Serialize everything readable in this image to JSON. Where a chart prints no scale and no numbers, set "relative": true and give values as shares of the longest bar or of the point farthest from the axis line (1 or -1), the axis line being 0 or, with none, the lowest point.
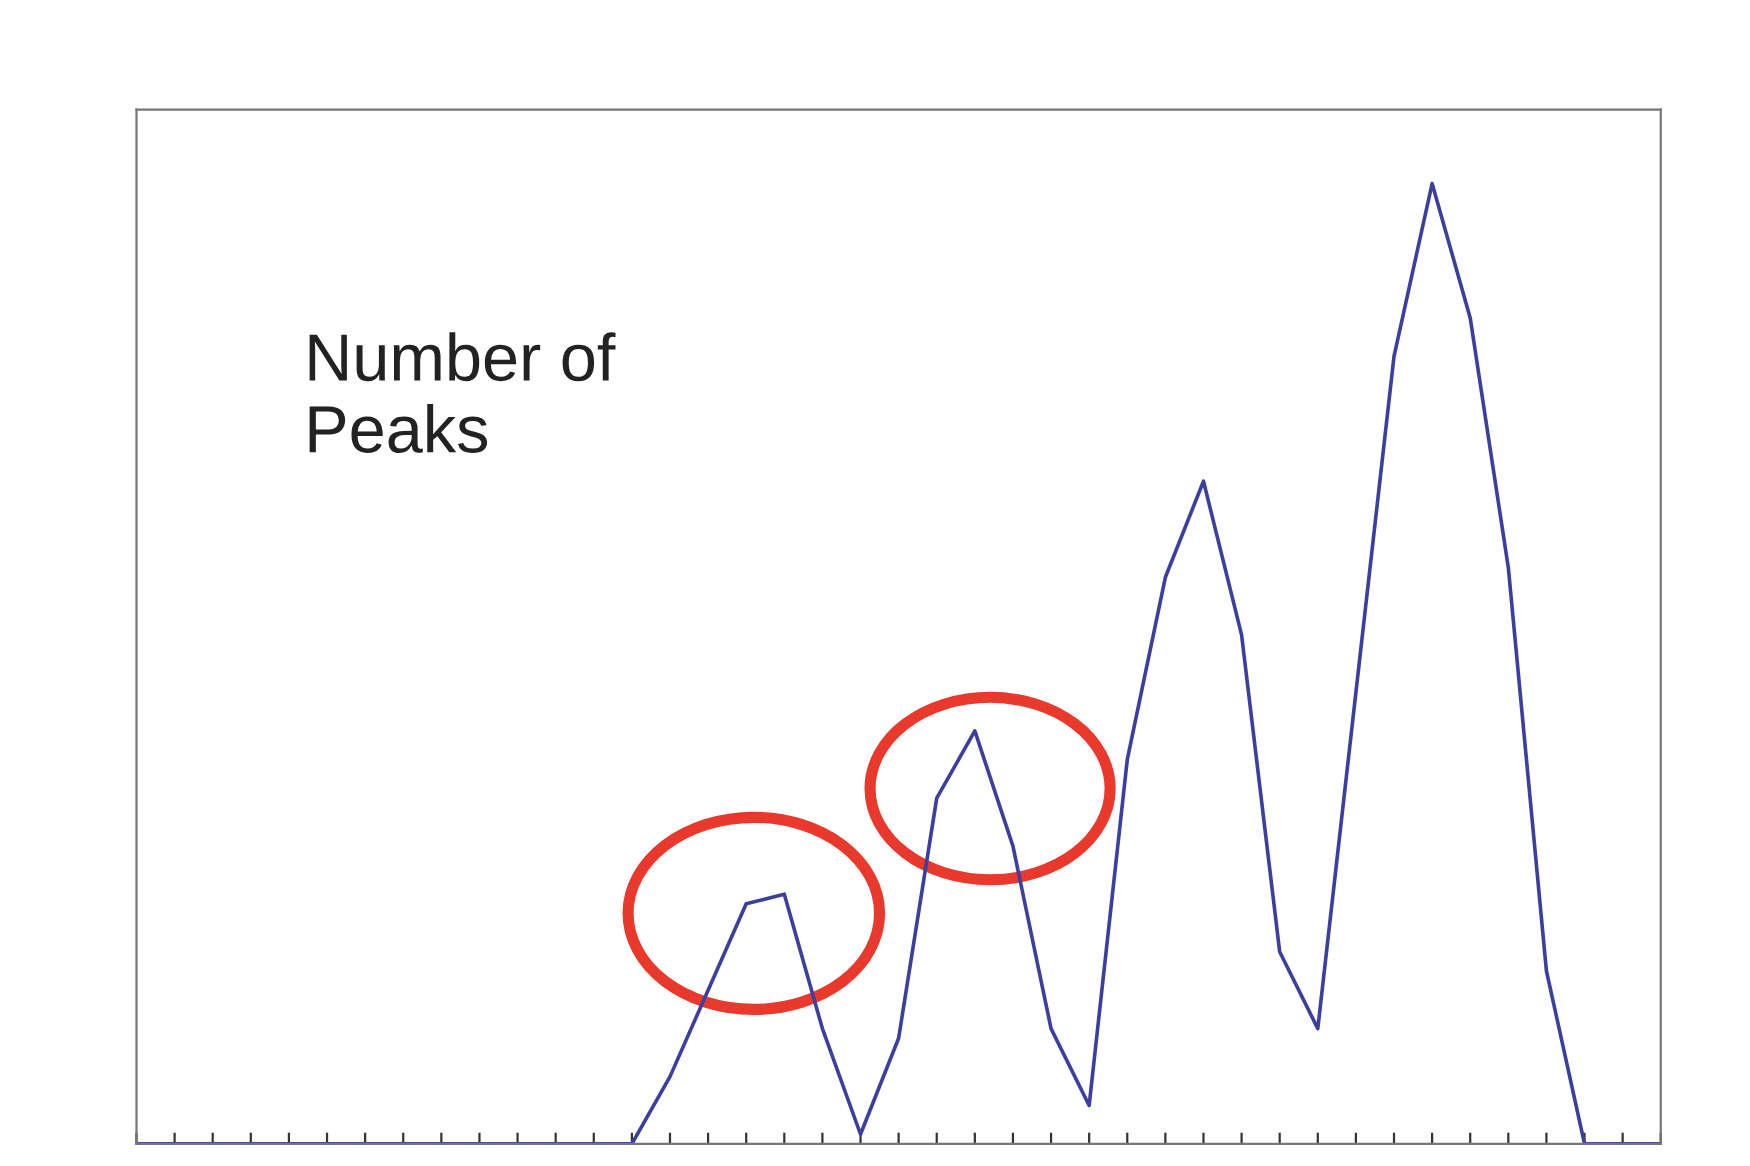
{
  "chart_data": {
    "type": "line",
    "relative": true,
    "grid": false,
    "annotations": [
      "Number of\nPeaks"
    ],
    "categories": [
      null,
      null,
      null,
      null,
      null,
      null,
      null,
      null,
      null,
      null,
      null,
      null,
      null,
      null,
      null,
      null,
      null,
      null,
      null,
      null,
      null,
      null,
      null,
      null,
      null,
      null,
      null,
      null,
      null,
      null,
      null,
      null,
      null,
      null,
      null,
      null,
      null,
      null,
      null,
      null,
      null
    ],
    "series": [
      {
        "color": "#3a3fa0",
        "values": [
          0,
          0,
          0,
          0,
          0,
          0,
          0,
          0,
          0,
          0,
          0,
          0,
          0,
          0,
          0.07,
          0.16,
          0.25,
          0.26,
          0.12,
          0.01,
          0.11,
          0.36,
          0.43,
          0.31,
          0.12,
          0.04,
          0.4,
          0.59,
          0.69,
          0.53,
          0.2,
          0.12,
          0.47,
          0.82,
          1.0,
          0.86,
          0.6,
          0.18,
          0,
          0,
          0
        ]
      }
    ]
  }
}
